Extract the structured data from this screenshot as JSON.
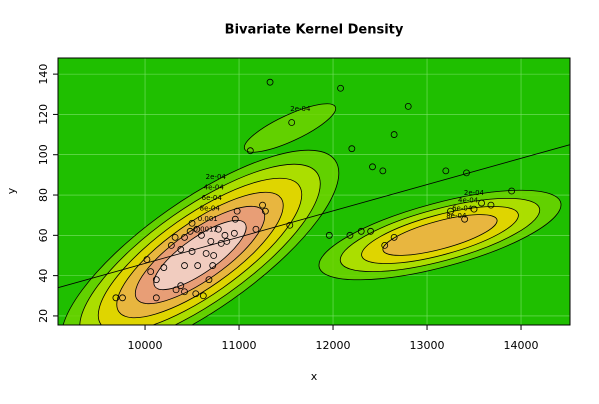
{
  "chart_data": {
    "type": "density-scatter",
    "title": "Bivariate Kernel Density",
    "x_label": "x",
    "y_label": "y",
    "xlim": [
      9074,
      14521
    ],
    "ylim": [
      15.5,
      148
    ],
    "xticks": [
      10000,
      11000,
      12000,
      13000,
      14000
    ],
    "yticks": [
      20,
      40,
      60,
      80,
      100,
      120,
      140
    ],
    "grid": true,
    "contour_levels": [
      {
        "value": 0.0002,
        "label": "2e-04"
      },
      {
        "value": 0.0004,
        "label": "4e-04"
      },
      {
        "value": 0.0006,
        "label": "6e-04"
      },
      {
        "value": 0.0008,
        "label": "8e-04"
      },
      {
        "value": 0.001,
        "label": "0.001"
      },
      {
        "value": 0.0012,
        "label": "0.0012"
      }
    ],
    "fit_line": {
      "x": [
        9074,
        14521
      ],
      "y": [
        34,
        105
      ]
    },
    "x": [
      11330,
      12080,
      12800,
      11560,
      12650,
      11120,
      12200,
      12420,
      12530,
      13200,
      13420,
      13900,
      13580,
      13680,
      13500,
      13250,
      13400,
      12400,
      12300,
      12180,
      11960,
      12650,
      12550,
      11540,
      11280,
      11250,
      11180,
      10960,
      10950,
      10850,
      10870,
      10780,
      10700,
      10600,
      10550,
      10500,
      10480,
      10420,
      10380,
      10320,
      10280,
      10200,
      10120,
      10060,
      10020,
      10500,
      10420,
      10380,
      10330,
      10420,
      10540,
      10620,
      10680,
      10720,
      10650,
      10730,
      10810,
      10120,
      9760,
      9690,
      10560,
      10980
    ],
    "y": [
      136,
      133,
      124,
      116,
      110,
      102,
      103,
      94,
      92,
      92,
      91,
      82,
      76,
      75,
      73,
      72,
      68,
      62,
      62,
      60,
      60,
      59,
      55,
      65,
      72,
      75,
      63,
      68,
      61,
      60,
      57,
      63,
      57,
      60,
      63,
      66,
      62,
      59,
      53,
      59,
      55,
      44,
      38,
      42,
      48,
      52,
      45,
      35,
      33,
      32,
      31,
      30,
      38,
      45,
      51,
      50,
      56,
      29,
      29,
      29,
      45,
      72
    ]
  }
}
